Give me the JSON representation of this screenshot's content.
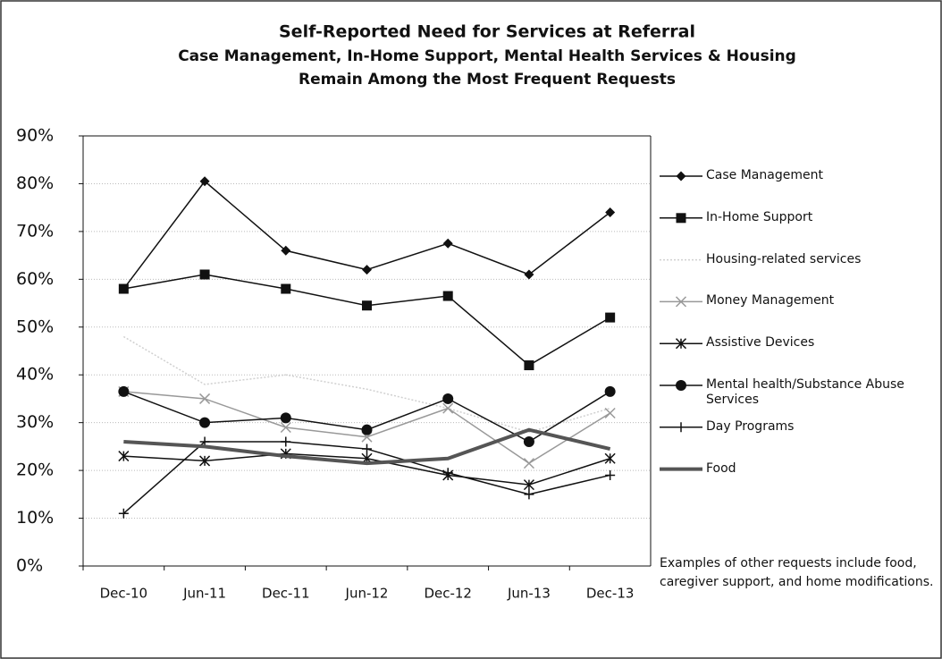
{
  "chart_data": {
    "type": "line",
    "title": "Self-Reported Need for Services at Referral",
    "subtitle": [
      "Case Management, In-Home Support, Mental Health Services & Housing",
      "Remain Among the Most Frequent Requests"
    ],
    "note": "Examples of other requests include food, caregiver support, and home modifications.",
    "categories": [
      "Dec-10",
      "Jun-11",
      "Dec-11",
      "Jun-12",
      "Dec-12",
      "Jun-13",
      "Dec-13"
    ],
    "ylim": [
      0,
      90
    ],
    "yticks": [
      {
        "value": 0,
        "label": "0%"
      },
      {
        "value": 10,
        "label": "10%"
      },
      {
        "value": 20,
        "label": "20%"
      },
      {
        "value": 30,
        "label": "30%"
      },
      {
        "value": 40,
        "label": "40%"
      },
      {
        "value": 50,
        "label": "50%"
      },
      {
        "value": 60,
        "label": "60%"
      },
      {
        "value": 70,
        "label": "70%"
      },
      {
        "value": 80,
        "label": "80%"
      },
      {
        "value": 90,
        "label": "90%"
      }
    ],
    "grid": true,
    "legend": "right",
    "series": [
      {
        "name": "Case Management",
        "color": "#111111",
        "marker": "diamond",
        "line_width": 1.5,
        "values": [
          58,
          80.5,
          66,
          62,
          67.5,
          61,
          74
        ]
      },
      {
        "name": "In-Home Support",
        "color": "#111111",
        "marker": "square",
        "line_width": 1.5,
        "values": [
          58,
          61,
          58,
          54.5,
          56.5,
          42,
          52
        ]
      },
      {
        "name": "Housing-related services",
        "color": "#d0d0d0",
        "marker": "none",
        "line_width": 1.5,
        "values": [
          48,
          38,
          40,
          37,
          33,
          28,
          33
        ]
      },
      {
        "name": "Money Management",
        "color": "#999999",
        "marker": "x",
        "line_width": 1.5,
        "values": [
          36.5,
          35,
          29,
          27,
          33,
          21.5,
          32
        ]
      },
      {
        "name": "Assistive Devices",
        "color": "#111111",
        "marker": "asterisk",
        "line_width": 1.5,
        "values": [
          23,
          22,
          23.5,
          22.5,
          19,
          17,
          22.5
        ]
      },
      {
        "name": "Mental health/Substance Abuse Services",
        "color": "#111111",
        "marker": "circle",
        "line_width": 1.5,
        "values": [
          36.5,
          30,
          31,
          28.5,
          35,
          26,
          36.5
        ]
      },
      {
        "name": "Day Programs",
        "color": "#111111",
        "marker": "plus",
        "line_width": 1.5,
        "values": [
          11,
          26,
          26,
          24.5,
          19.5,
          15,
          19
        ]
      },
      {
        "name": "Food",
        "color": "#555555",
        "marker": "none",
        "line_width": 4,
        "values": [
          26,
          25,
          23,
          21.5,
          22.5,
          28.5,
          24.5
        ]
      }
    ]
  }
}
